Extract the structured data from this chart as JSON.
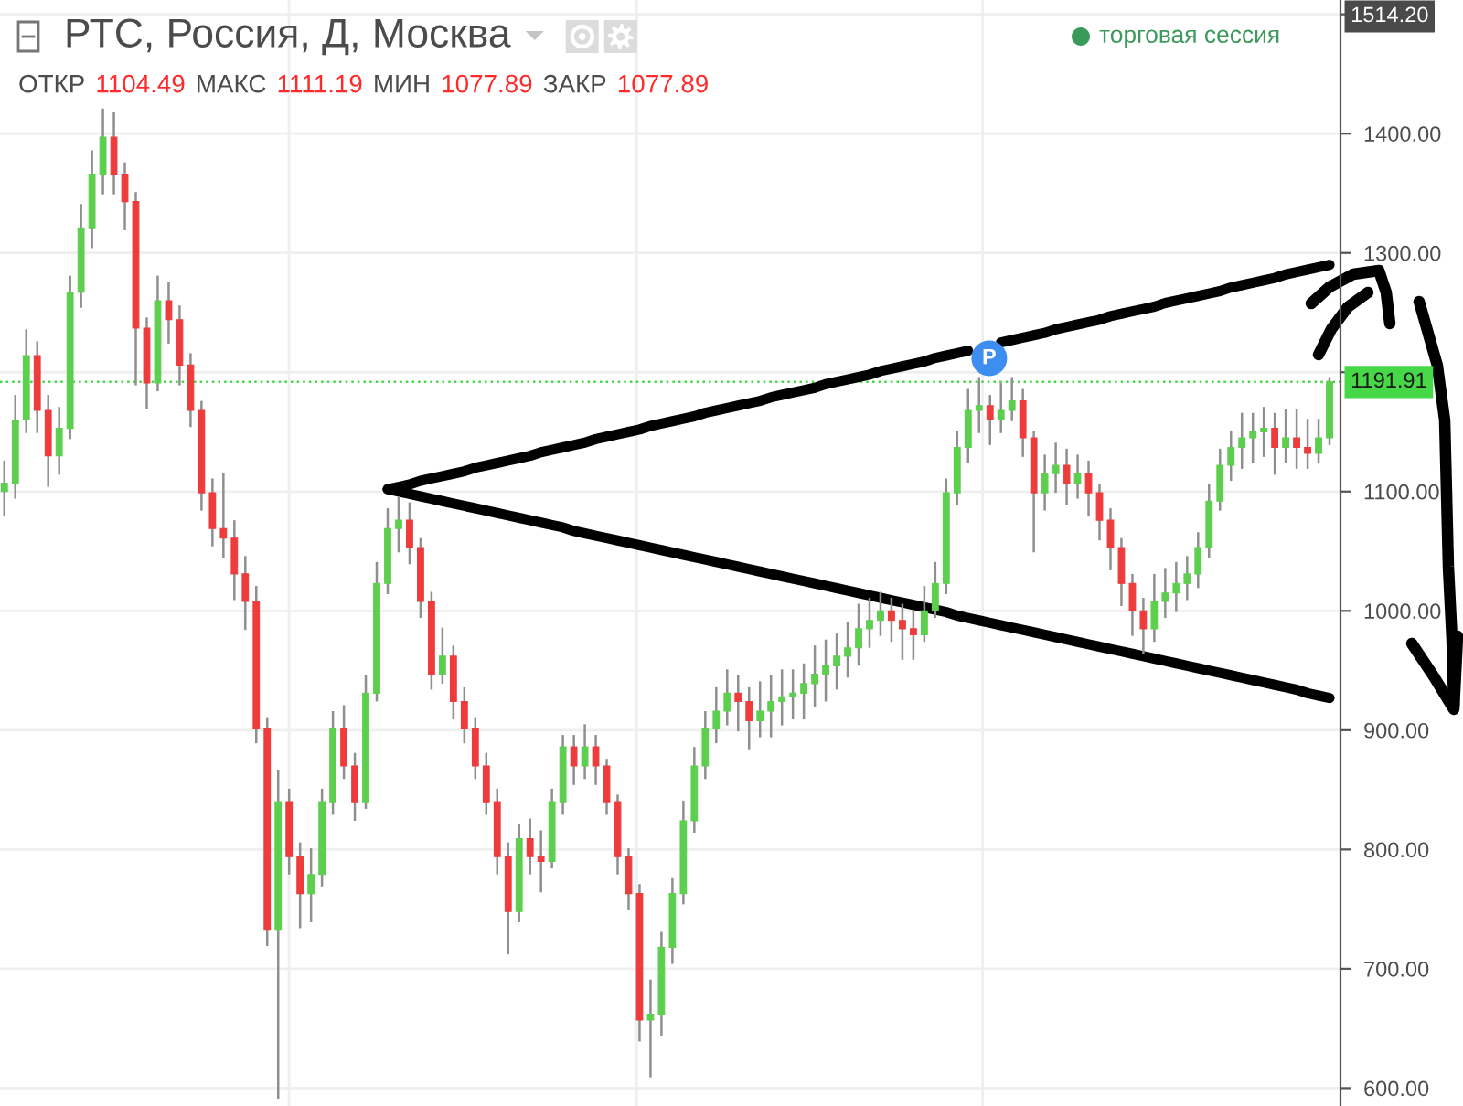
{
  "chart_data": {
    "type": "candlestick",
    "title": "РТС, Россия, Д, Москва",
    "subtitle": "ОТКР 1104.49 МАКС 1111.19 МИН 1077.89 ЗАКР 1077.89",
    "annotations": [
      "торговая сессия",
      "P",
      "1514.20"
    ],
    "categories": [
      null,
      null,
      null,
      null,
      null,
      null,
      null,
      null,
      null,
      null,
      null,
      null,
      null,
      null,
      null,
      null,
      null,
      null,
      null,
      null,
      null,
      null,
      null,
      null,
      null,
      null,
      null,
      null,
      null,
      null,
      null,
      null,
      null,
      null,
      null,
      null,
      null,
      null,
      null,
      null,
      null,
      null,
      null,
      null,
      null,
      null,
      null,
      null,
      null,
      null,
      null,
      null,
      null,
      null,
      null,
      null,
      null,
      null,
      null,
      null,
      null,
      null,
      null,
      null,
      null,
      null,
      null,
      null,
      null,
      null,
      null,
      null,
      null,
      null,
      null,
      null,
      null,
      null,
      null,
      null,
      null,
      null,
      null,
      null,
      null,
      null,
      null,
      null,
      null,
      null,
      null,
      null,
      null,
      null,
      null,
      null,
      null,
      null,
      null,
      null,
      null,
      null,
      null,
      null,
      null,
      null,
      null,
      null,
      null,
      null,
      null,
      null,
      null,
      null,
      null,
      null,
      null,
      null,
      null,
      null,
      null,
      null
    ],
    "ohlc": [
      [
        1100,
        1125,
        1080,
        1107
      ],
      [
        1107,
        1180,
        1095,
        1160
      ],
      [
        1160,
        1235,
        1150,
        1214
      ],
      [
        1214,
        1225,
        1150,
        1168
      ],
      [
        1168,
        1180,
        1105,
        1130
      ],
      [
        1130,
        1170,
        1115,
        1153
      ],
      [
        1153,
        1280,
        1145,
        1267
      ],
      [
        1267,
        1340,
        1255,
        1321
      ],
      [
        1321,
        1385,
        1305,
        1366
      ],
      [
        1366,
        1420,
        1350,
        1397
      ],
      [
        1397,
        1417,
        1350,
        1366
      ],
      [
        1366,
        1375,
        1320,
        1343
      ],
      [
        1343,
        1350,
        1190,
        1237
      ],
      [
        1237,
        1245,
        1170,
        1191
      ],
      [
        1191,
        1280,
        1185,
        1260
      ],
      [
        1260,
        1275,
        1225,
        1244
      ],
      [
        1244,
        1255,
        1190,
        1206
      ],
      [
        1206,
        1215,
        1155,
        1168
      ],
      [
        1168,
        1175,
        1085,
        1099
      ],
      [
        1099,
        1110,
        1055,
        1069
      ],
      [
        1069,
        1115,
        1045,
        1061
      ],
      [
        1061,
        1075,
        1010,
        1031
      ],
      [
        1031,
        1045,
        985,
        1008
      ],
      [
        1008,
        1020,
        890,
        901
      ],
      [
        901,
        910,
        720,
        733
      ],
      [
        733,
        866,
        592,
        840
      ],
      [
        840,
        850,
        780,
        794
      ],
      [
        794,
        805,
        735,
        763
      ],
      [
        763,
        800,
        740,
        779
      ],
      [
        779,
        850,
        770,
        840
      ],
      [
        840,
        915,
        830,
        901
      ],
      [
        901,
        920,
        860,
        870
      ],
      [
        870,
        880,
        825,
        840
      ],
      [
        840,
        945,
        835,
        931
      ],
      [
        931,
        1040,
        925,
        1023
      ],
      [
        1023,
        1085,
        1015,
        1069
      ],
      [
        1069,
        1095,
        1050,
        1076
      ],
      [
        1076,
        1090,
        1040,
        1053
      ],
      [
        1053,
        1060,
        995,
        1008
      ],
      [
        1008,
        1015,
        935,
        947
      ],
      [
        947,
        985,
        940,
        962
      ],
      [
        962,
        970,
        910,
        924
      ],
      [
        924,
        935,
        890,
        901
      ],
      [
        901,
        910,
        860,
        870
      ],
      [
        870,
        880,
        830,
        840
      ],
      [
        840,
        850,
        780,
        794
      ],
      [
        794,
        805,
        713,
        748
      ],
      [
        748,
        820,
        740,
        809
      ],
      [
        809,
        825,
        780,
        794
      ],
      [
        794,
        815,
        765,
        790
      ],
      [
        790,
        850,
        785,
        840
      ],
      [
        840,
        895,
        830,
        886
      ],
      [
        886,
        895,
        855,
        870
      ],
      [
        870,
        904,
        860,
        886
      ],
      [
        886,
        895,
        855,
        870
      ],
      [
        870,
        875,
        830,
        840
      ],
      [
        840,
        845,
        780,
        794
      ],
      [
        794,
        800,
        750,
        763
      ],
      [
        763,
        770,
        640,
        657
      ],
      [
        657,
        690,
        610,
        662
      ],
      [
        662,
        730,
        645,
        718
      ],
      [
        718,
        775,
        705,
        763
      ],
      [
        763,
        840,
        755,
        824
      ],
      [
        824,
        885,
        815,
        870
      ],
      [
        870,
        915,
        860,
        901
      ],
      [
        901,
        935,
        890,
        916
      ],
      [
        916,
        950,
        905,
        931
      ],
      [
        931,
        945,
        900,
        924
      ],
      [
        924,
        935,
        885,
        908
      ],
      [
        908,
        940,
        895,
        916
      ],
      [
        916,
        945,
        895,
        924
      ],
      [
        924,
        950,
        905,
        928
      ],
      [
        928,
        950,
        910,
        931
      ],
      [
        931,
        955,
        910,
        939
      ],
      [
        939,
        970,
        920,
        947
      ],
      [
        947,
        975,
        925,
        954
      ],
      [
        954,
        980,
        935,
        962
      ],
      [
        962,
        990,
        945,
        969
      ],
      [
        969,
        1005,
        955,
        985
      ],
      [
        985,
        1010,
        970,
        992
      ],
      [
        992,
        1015,
        980,
        1000
      ],
      [
        1000,
        1010,
        975,
        992
      ],
      [
        992,
        1005,
        960,
        985
      ],
      [
        985,
        1000,
        960,
        980
      ],
      [
        980,
        1020,
        975,
        1000
      ],
      [
        1000,
        1040,
        995,
        1023
      ],
      [
        1023,
        1110,
        1015,
        1099
      ],
      [
        1099,
        1150,
        1090,
        1137
      ],
      [
        1137,
        1185,
        1125,
        1168
      ],
      [
        1168,
        1195,
        1150,
        1172
      ],
      [
        1172,
        1180,
        1140,
        1160
      ],
      [
        1160,
        1190,
        1150,
        1168
      ],
      [
        1168,
        1195,
        1160,
        1176
      ],
      [
        1176,
        1185,
        1130,
        1145
      ],
      [
        1145,
        1150,
        1050,
        1099
      ],
      [
        1099,
        1130,
        1085,
        1115
      ],
      [
        1115,
        1140,
        1100,
        1122
      ],
      [
        1122,
        1135,
        1090,
        1107
      ],
      [
        1107,
        1130,
        1095,
        1115
      ],
      [
        1115,
        1125,
        1080,
        1099
      ],
      [
        1099,
        1105,
        1060,
        1076
      ],
      [
        1076,
        1085,
        1035,
        1053
      ],
      [
        1053,
        1060,
        1005,
        1023
      ],
      [
        1023,
        1030,
        980,
        1000
      ],
      [
        1000,
        1010,
        965,
        985
      ],
      [
        985,
        1030,
        975,
        1008
      ],
      [
        1008,
        1035,
        995,
        1015
      ],
      [
        1015,
        1040,
        1000,
        1023
      ],
      [
        1023,
        1045,
        1010,
        1031
      ],
      [
        1031,
        1065,
        1020,
        1053
      ],
      [
        1053,
        1105,
        1045,
        1092
      ],
      [
        1092,
        1135,
        1085,
        1122
      ],
      [
        1122,
        1150,
        1110,
        1137
      ],
      [
        1137,
        1165,
        1120,
        1145
      ],
      [
        1145,
        1165,
        1125,
        1150
      ],
      [
        1150,
        1170,
        1130,
        1153
      ],
      [
        1153,
        1165,
        1115,
        1137
      ],
      [
        1137,
        1168,
        1125,
        1145
      ],
      [
        1145,
        1168,
        1120,
        1137
      ],
      [
        1137,
        1160,
        1120,
        1132
      ],
      [
        1132,
        1160,
        1125,
        1145
      ],
      [
        1145,
        1195,
        1140,
        1191.91
      ]
    ],
    "colors": [
      "#5dcf4e",
      "#5dcf4e",
      "#5dcf4e",
      "#ee3b3b",
      "#ee3b3b",
      "#5dcf4e",
      "#5dcf4e",
      "#5dcf4e",
      "#5dcf4e",
      "#5dcf4e",
      "#ee3b3b",
      "#ee3b3b",
      "#ee3b3b",
      "#ee3b3b",
      "#5dcf4e",
      "#ee3b3b",
      "#ee3b3b",
      "#ee3b3b",
      "#ee3b3b",
      "#ee3b3b",
      "#ee3b3b",
      "#ee3b3b",
      "#ee3b3b",
      "#ee3b3b",
      "#ee3b3b",
      "#5dcf4e",
      "#ee3b3b",
      "#ee3b3b",
      "#5dcf4e",
      "#5dcf4e",
      "#5dcf4e",
      "#ee3b3b",
      "#ee3b3b",
      "#5dcf4e",
      "#5dcf4e",
      "#5dcf4e",
      "#5dcf4e",
      "#ee3b3b",
      "#ee3b3b",
      "#ee3b3b",
      "#5dcf4e",
      "#ee3b3b",
      "#ee3b3b",
      "#ee3b3b",
      "#ee3b3b",
      "#ee3b3b",
      "#ee3b3b",
      "#5dcf4e",
      "#ee3b3b",
      "#ee3b3b",
      "#5dcf4e",
      "#5dcf4e",
      "#ee3b3b",
      "#5dcf4e",
      "#ee3b3b",
      "#ee3b3b",
      "#ee3b3b",
      "#ee3b3b",
      "#ee3b3b",
      "#5dcf4e",
      "#5dcf4e",
      "#5dcf4e",
      "#5dcf4e",
      "#5dcf4e",
      "#5dcf4e",
      "#5dcf4e",
      "#5dcf4e",
      "#ee3b3b",
      "#ee3b3b",
      "#5dcf4e",
      "#5dcf4e",
      "#5dcf4e",
      "#5dcf4e",
      "#5dcf4e",
      "#5dcf4e",
      "#5dcf4e",
      "#5dcf4e",
      "#5dcf4e",
      "#5dcf4e",
      "#5dcf4e",
      "#5dcf4e",
      "#ee3b3b",
      "#ee3b3b",
      "#ee3b3b",
      "#5dcf4e",
      "#5dcf4e",
      "#5dcf4e",
      "#5dcf4e",
      "#5dcf4e",
      "#5dcf4e",
      "#ee3b3b",
      "#5dcf4e",
      "#5dcf4e",
      "#ee3b3b",
      "#ee3b3b",
      "#5dcf4e",
      "#5dcf4e",
      "#ee3b3b",
      "#5dcf4e",
      "#ee3b3b",
      "#ee3b3b",
      "#ee3b3b",
      "#ee3b3b",
      "#ee3b3b",
      "#ee3b3b",
      "#5dcf4e",
      "#5dcf4e",
      "#5dcf4e",
      "#5dcf4e",
      "#5dcf4e",
      "#5dcf4e",
      "#5dcf4e",
      "#5dcf4e",
      "#5dcf4e",
      "#5dcf4e",
      "#5dcf4e",
      "#ee3b3b",
      "#5dcf4e",
      "#ee3b3b",
      "#ee3b3b",
      "#5dcf4e",
      "#5dcf4e"
    ],
    "series": [
      {
        "type": "line",
        "color": "#000000",
        "values": [
          null,
          null,
          null,
          null,
          null,
          null,
          null,
          null,
          null,
          null,
          null,
          null,
          null,
          null,
          null,
          null,
          null,
          null,
          null,
          null,
          null,
          null,
          null,
          null,
          null,
          null,
          null,
          null,
          null,
          null,
          null,
          null,
          null,
          null,
          null,
          1102,
          1104,
          1106,
          1109,
          1111,
          1113,
          1115,
          1117,
          1120,
          1122,
          1124,
          1126,
          1128,
          1130,
          1133,
          1135,
          1137,
          1139,
          1141,
          1144,
          1146,
          1148,
          1150,
          1152,
          1155,
          1157,
          1159,
          1161,
          1163,
          1166,
          1168,
          1170,
          1172,
          1174,
          1176,
          1179,
          1181,
          1183,
          1185,
          1187,
          1190,
          1192,
          1194,
          1196,
          1198,
          1201,
          1203,
          1205,
          1207,
          1209,
          1212,
          1214,
          1216,
          1218,
          null,
          null,
          1225,
          1227,
          1229,
          1231,
          1233,
          1236,
          1238,
          1240,
          1242,
          1244,
          1247,
          1249,
          1251,
          1253,
          1255,
          1258,
          1260,
          1262,
          1264,
          1266,
          1268,
          1271,
          1273,
          1275,
          1277,
          1279,
          1282,
          1284,
          1286,
          1288,
          1290
        ]
      },
      {
        "type": "line",
        "color": "#000000",
        "values": [
          null,
          null,
          null,
          null,
          null,
          null,
          null,
          null,
          null,
          null,
          null,
          null,
          null,
          null,
          null,
          null,
          null,
          null,
          null,
          null,
          null,
          null,
          null,
          null,
          null,
          null,
          null,
          null,
          null,
          null,
          null,
          null,
          null,
          null,
          null,
          1102,
          1100,
          1098,
          1096,
          1094,
          1092,
          1090,
          1088,
          1086,
          1084,
          1082,
          1080,
          1078,
          1076,
          1074,
          1072,
          1070,
          1067,
          1065,
          1063,
          1061,
          1059,
          1057,
          1055,
          1053,
          1051,
          1049,
          1047,
          1045,
          1043,
          1041,
          1039,
          1037,
          1035,
          1033,
          1031,
          1029,
          1027,
          1025,
          1023,
          1021,
          1019,
          1017,
          1015,
          1013,
          1011,
          1009,
          1007,
          1005,
          1003,
          1001,
          999,
          996,
          994,
          992,
          990,
          988,
          986,
          984,
          982,
          980,
          978,
          976,
          974,
          972,
          970,
          968,
          966,
          964,
          962,
          960,
          958,
          956,
          954,
          952,
          950,
          948,
          946,
          944,
          942,
          940,
          938,
          936,
          934,
          931,
          929,
          927
        ]
      }
    ],
    "ylim": [
      585,
      1512
    ],
    "yticks": [
      {
        "value": 600,
        "label": "600.00"
      },
      {
        "value": 700,
        "label": "700.00"
      },
      {
        "value": 800,
        "label": "800.00"
      },
      {
        "value": 900,
        "label": "900.00"
      },
      {
        "value": 1000,
        "label": "1000.00"
      },
      {
        "value": 1100,
        "label": "1100.00"
      },
      {
        "value": 1200,
        "label": null
      },
      {
        "value": 1300,
        "label": "1300.00"
      },
      {
        "value": 1400,
        "label": "1400.00"
      },
      {
        "value": 1500,
        "label": null
      }
    ],
    "ref_lines": [
      {
        "axis": "y",
        "value": 1191.91,
        "label": "1191.91",
        "color": "#46d846",
        "line_style": "dotted"
      }
    ],
    "grid": true,
    "tick_labels": "y"
  }
}
